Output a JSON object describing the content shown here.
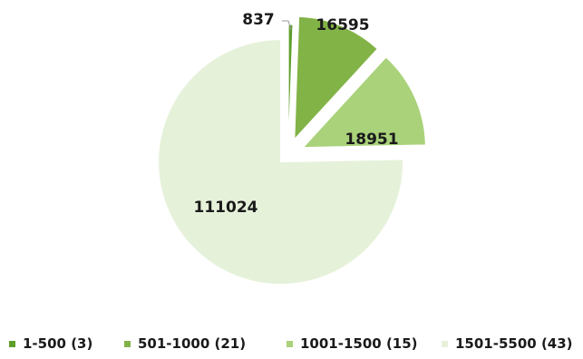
{
  "chart_data": {
    "type": "pie",
    "title": "",
    "slices": [
      {
        "category": "1-500 (3)",
        "value": 837,
        "label": "837",
        "color": "#5f9e2c"
      },
      {
        "category": "501-1000 (21)",
        "value": 16595,
        "label": "16595",
        "color": "#82b347"
      },
      {
        "category": "1001-1500 (15)",
        "value": 18951,
        "label": "18951",
        "color": "#a9d27a"
      },
      {
        "category": "1501-5500 (43)",
        "value": 111024,
        "label": "111024",
        "color": "#e6f1da"
      }
    ],
    "exploded": true,
    "legend_position": "bottom"
  }
}
